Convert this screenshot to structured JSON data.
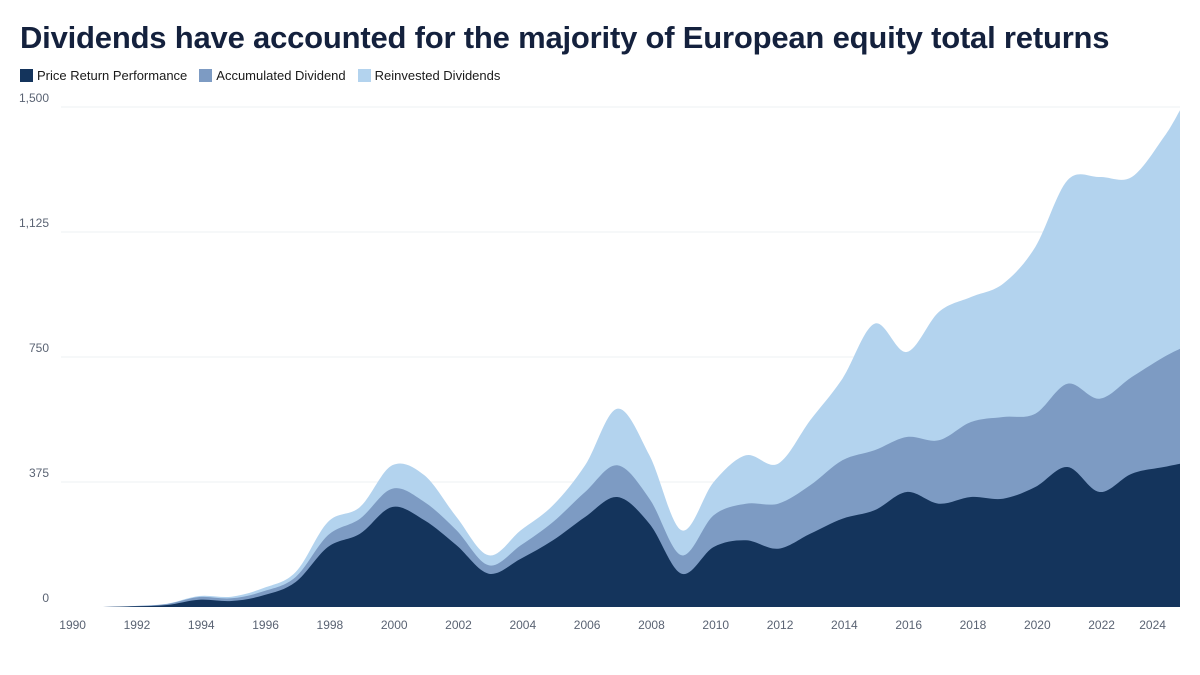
{
  "colors": {
    "price": "#14345c",
    "accumulated": "#7d9bc3",
    "reinvested": "#b3d3ee",
    "grid": "#eef0f3",
    "axis_text": "#5a6373",
    "title": "#14213d"
  },
  "chart_data": {
    "type": "area",
    "stacked": true,
    "title": "Dividends have accounted for the majority of European equity total returns",
    "xlabel": "",
    "ylabel": "",
    "legend_position": "top-left",
    "grid": true,
    "ylim": [
      0,
      1500
    ],
    "yticks": [
      0,
      375,
      750,
      1125,
      1500
    ],
    "ytick_labels": [
      "0",
      "375",
      "750",
      "1,125",
      "1,500"
    ],
    "xticks": [
      1990,
      1992,
      1994,
      1996,
      1998,
      2000,
      2002,
      2004,
      2006,
      2008,
      2010,
      2012,
      2014,
      2016,
      2018,
      2020,
      2022,
      2024
    ],
    "xtick_labels": [
      "1990",
      "1992",
      "1994",
      "1996",
      "1998",
      "2000",
      "2002",
      "2004",
      "2006",
      "2008",
      "2010",
      "2012",
      "2014",
      "2016",
      "2018",
      "2020",
      "2022",
      "2024"
    ],
    "x": [
      1990,
      1991,
      1992,
      1993,
      1994,
      1995,
      1996,
      1997,
      1998,
      1999,
      2000,
      2001,
      2002,
      2003,
      2004,
      2005,
      2006,
      2007,
      2008,
      2009,
      2010,
      2011,
      2012,
      2013,
      2014,
      2015,
      2016,
      2017,
      2018,
      2019,
      2020,
      2021,
      2022,
      2023,
      2024,
      2024.5
    ],
    "series": [
      {
        "name": "Price Return Performance",
        "color_key": "price",
        "values": [
          0,
          0,
          2,
          6,
          22,
          18,
          35,
          75,
          180,
          220,
          300,
          260,
          185,
          100,
          145,
          200,
          270,
          330,
          250,
          100,
          180,
          200,
          175,
          220,
          265,
          290,
          345,
          310,
          330,
          325,
          360,
          420,
          345,
          400,
          420,
          430
        ]
      },
      {
        "name": "Accumulated Dividend",
        "color_key": "accumulated",
        "values": [
          0,
          0,
          1,
          3,
          8,
          8,
          12,
          15,
          35,
          45,
          55,
          55,
          45,
          25,
          40,
          55,
          75,
          95,
          75,
          55,
          95,
          110,
          135,
          145,
          175,
          180,
          165,
          190,
          225,
          245,
          220,
          250,
          280,
          290,
          330,
          345
        ]
      },
      {
        "name": "Reinvested Dividends",
        "color_key": "reinvested",
        "values": [
          0,
          0,
          0,
          1,
          3,
          5,
          10,
          15,
          40,
          35,
          70,
          80,
          40,
          30,
          45,
          50,
          80,
          170,
          130,
          75,
          100,
          145,
          120,
          195,
          245,
          380,
          255,
          385,
          375,
          400,
          500,
          610,
          665,
          600,
          660,
          715
        ]
      }
    ]
  }
}
